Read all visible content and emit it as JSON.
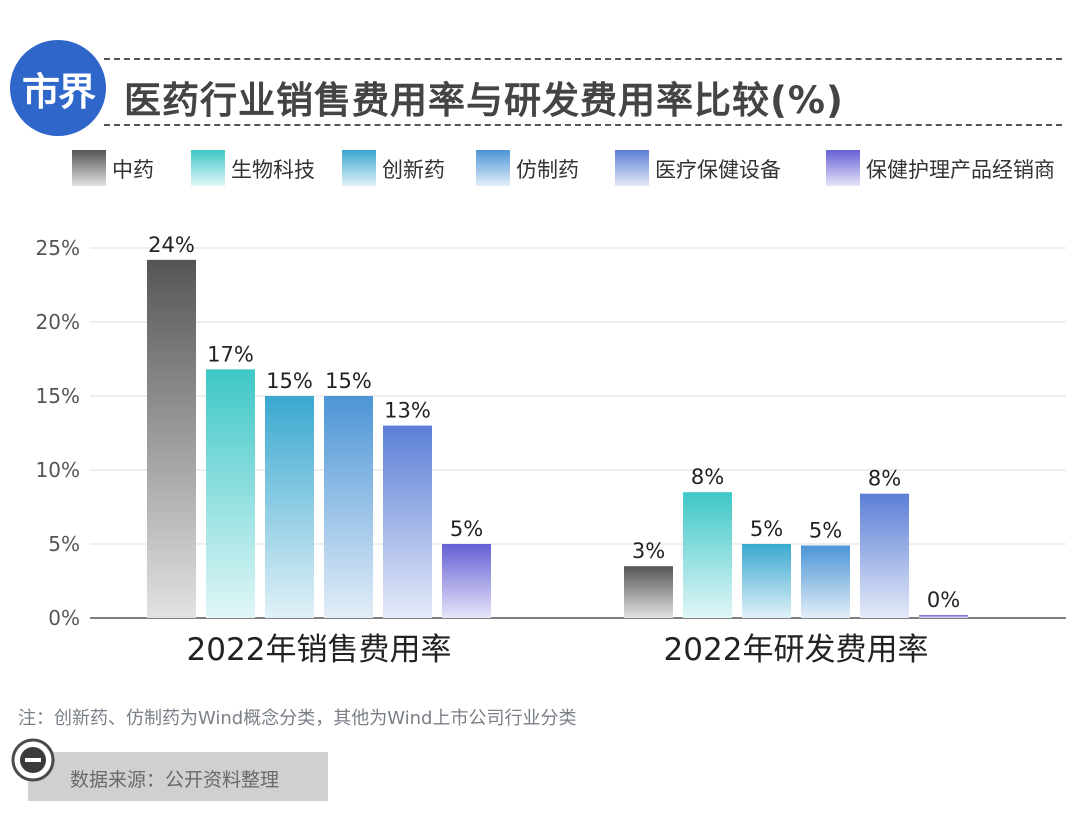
{
  "header": {
    "logo_text": "市界",
    "title": "医药行业销售费用率与研发费用率比较(%)"
  },
  "chart_data": {
    "type": "bar",
    "title": "医药行业销售费用率与研发费用率比较(%)",
    "categories": [
      "2022年销售费用率",
      "2022年研发费用率"
    ],
    "series": [
      {
        "name": "中药",
        "values": [
          24.2,
          3.5
        ],
        "labels": [
          "24%",
          "3%"
        ],
        "color_top": "#555555",
        "color_bottom": "#e2e2e2"
      },
      {
        "name": "生物科技",
        "values": [
          16.8,
          8.5
        ],
        "labels": [
          "17%",
          "8%"
        ],
        "color_top": "#3ec7c7",
        "color_bottom": "#e1f6f7"
      },
      {
        "name": "创新药",
        "values": [
          15.0,
          5.0
        ],
        "labels": [
          "15%",
          "5%"
        ],
        "color_top": "#3aa8cf",
        "color_bottom": "#e1f1f8"
      },
      {
        "name": "仿制药",
        "values": [
          15.0,
          4.9
        ],
        "labels": [
          "15%",
          "5%"
        ],
        "color_top": "#4c95d6",
        "color_bottom": "#e3eef8"
      },
      {
        "name": "医疗保健设备",
        "values": [
          13.0,
          8.4
        ],
        "labels": [
          "13%",
          "8%"
        ],
        "color_top": "#5b7ed6",
        "color_bottom": "#e5eaf8"
      },
      {
        "name": "保健护理产品经销商",
        "values": [
          5.0,
          0.2
        ],
        "labels": [
          "5%",
          "0%"
        ],
        "color_top": "#6660d6",
        "color_bottom": "#e6e5f8"
      }
    ],
    "yticks": [
      "0%",
      "5%",
      "10%",
      "15%",
      "20%",
      "25%"
    ],
    "ylim": [
      0,
      25
    ],
    "grid": true,
    "legend_position": "top"
  },
  "footer": {
    "note": "注：创新药、仿制药为Wind概念分类，其他为Wind上市公司行业分类",
    "source": "数据来源：公开资料整理"
  }
}
